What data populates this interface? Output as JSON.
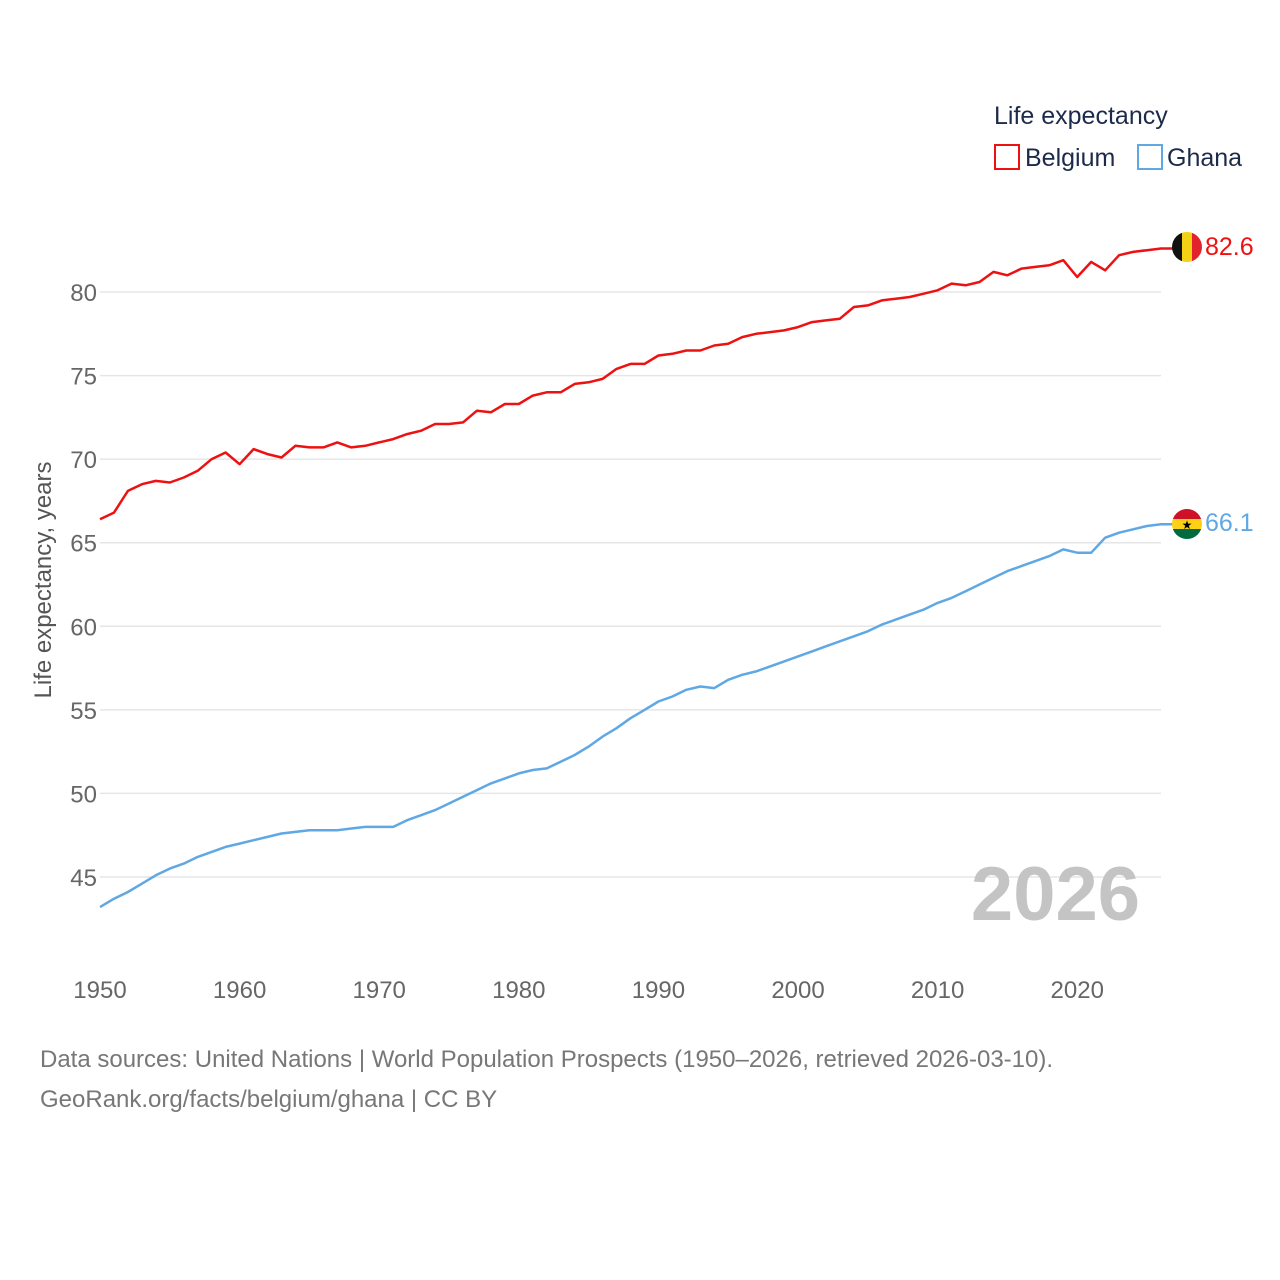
{
  "legend": {
    "title": "Life expectancy",
    "items": [
      {
        "name": "Belgium",
        "color": "#ee1111"
      },
      {
        "name": "Ghana",
        "color": "#5fa8e4"
      }
    ]
  },
  "year_watermark": "2026",
  "source": {
    "line1": "Data sources: United Nations | World Population Prospects (1950–2026, retrieved 2026-03-10).",
    "line2": "GeoRank.org/facts/belgium/ghana | CC BY"
  },
  "chart_data": {
    "type": "line",
    "title": "Life expectancy",
    "xlabel": "",
    "ylabel": "Life expectancy, years",
    "xlim": [
      1950,
      2026
    ],
    "ylim": [
      42,
      84
    ],
    "grid": true,
    "x_ticks": [
      1950,
      1960,
      1970,
      1980,
      1990,
      2000,
      2010,
      2020
    ],
    "y_ticks": [
      45,
      50,
      55,
      60,
      65,
      70,
      75,
      80
    ],
    "legend_position": "top-right",
    "x": [
      1950,
      1951,
      1952,
      1953,
      1954,
      1955,
      1956,
      1957,
      1958,
      1959,
      1960,
      1961,
      1962,
      1963,
      1964,
      1965,
      1966,
      1967,
      1968,
      1969,
      1970,
      1971,
      1972,
      1973,
      1974,
      1975,
      1976,
      1977,
      1978,
      1979,
      1980,
      1981,
      1982,
      1983,
      1984,
      1985,
      1986,
      1987,
      1988,
      1989,
      1990,
      1991,
      1992,
      1993,
      1994,
      1995,
      1996,
      1997,
      1998,
      1999,
      2000,
      2001,
      2002,
      2003,
      2004,
      2005,
      2006,
      2007,
      2008,
      2009,
      2010,
      2011,
      2012,
      2013,
      2014,
      2015,
      2016,
      2017,
      2018,
      2019,
      2020,
      2021,
      2022,
      2023,
      2024,
      2025,
      2026
    ],
    "series": [
      {
        "name": "Belgium",
        "color": "#ee1111",
        "end_label": "82.6",
        "flag": "belgium-flag-icon",
        "values": [
          66.4,
          66.8,
          68.1,
          68.5,
          68.7,
          68.6,
          68.9,
          69.3,
          70.0,
          70.4,
          69.7,
          70.6,
          70.3,
          70.1,
          70.8,
          70.7,
          70.7,
          71.0,
          70.7,
          70.8,
          71.0,
          71.2,
          71.5,
          71.7,
          72.1,
          72.1,
          72.2,
          72.9,
          72.8,
          73.3,
          73.3,
          73.8,
          74.0,
          74.0,
          74.5,
          74.6,
          74.8,
          75.4,
          75.7,
          75.7,
          76.2,
          76.3,
          76.5,
          76.5,
          76.8,
          76.9,
          77.3,
          77.5,
          77.6,
          77.7,
          77.9,
          78.2,
          78.3,
          78.4,
          79.1,
          79.2,
          79.5,
          79.6,
          79.7,
          79.9,
          80.1,
          80.5,
          80.4,
          80.6,
          81.2,
          81.0,
          81.4,
          81.5,
          81.6,
          81.9,
          80.9,
          81.8,
          81.3,
          82.2,
          82.4,
          82.5,
          82.6
        ]
      },
      {
        "name": "Ghana",
        "color": "#5fa8e4",
        "end_label": "66.1",
        "flag": "ghana-flag-icon",
        "values": [
          43.2,
          43.7,
          44.1,
          44.6,
          45.1,
          45.5,
          45.8,
          46.2,
          46.5,
          46.8,
          47.0,
          47.2,
          47.4,
          47.6,
          47.7,
          47.8,
          47.8,
          47.8,
          47.9,
          48.0,
          48.0,
          48.0,
          48.4,
          48.7,
          49.0,
          49.4,
          49.8,
          50.2,
          50.6,
          50.9,
          51.2,
          51.4,
          51.5,
          51.9,
          52.3,
          52.8,
          53.4,
          53.9,
          54.5,
          55.0,
          55.5,
          55.8,
          56.2,
          56.4,
          56.3,
          56.8,
          57.1,
          57.3,
          57.6,
          57.9,
          58.2,
          58.5,
          58.8,
          59.1,
          59.4,
          59.7,
          60.1,
          60.4,
          60.7,
          61.0,
          61.4,
          61.7,
          62.1,
          62.5,
          62.9,
          63.3,
          63.6,
          63.9,
          64.2,
          64.6,
          64.4,
          64.4,
          65.3,
          65.6,
          65.8,
          66.0,
          66.1
        ]
      }
    ]
  }
}
